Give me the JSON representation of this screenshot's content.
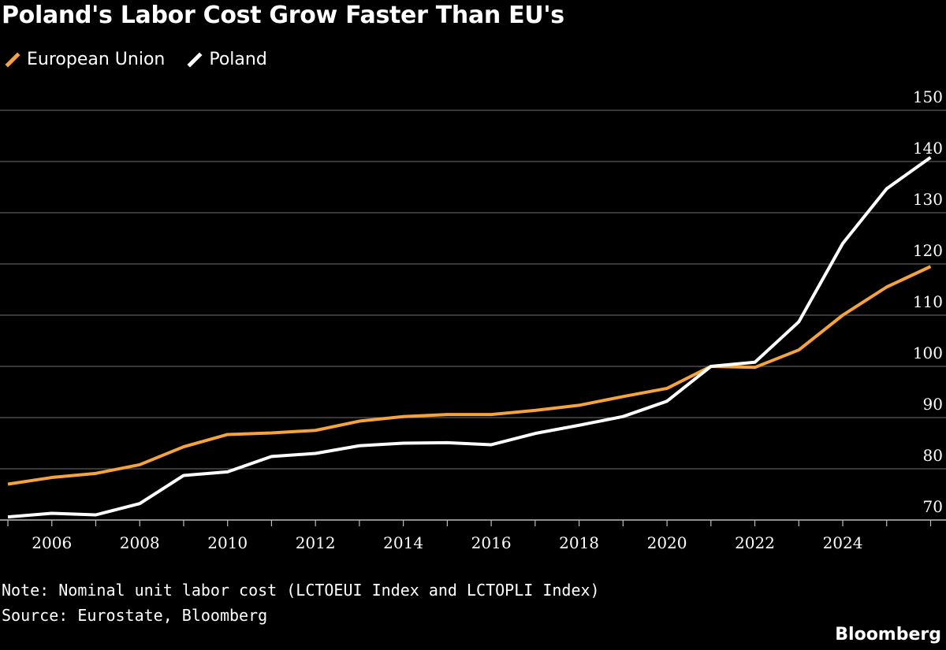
{
  "chart_data": {
    "type": "line",
    "title": "Poland's Labor Cost Grow Faster Than EU's",
    "x": [
      2005,
      2006,
      2007,
      2008,
      2009,
      2010,
      2011,
      2012,
      2013,
      2014,
      2015,
      2016,
      2017,
      2018,
      2019,
      2020,
      2021,
      2022,
      2023,
      2024,
      2025,
      2026
    ],
    "series": [
      {
        "name": "European Union",
        "color": "#f5a240",
        "values": [
          77.0,
          78.3,
          79.1,
          80.8,
          84.3,
          86.7,
          87.0,
          87.5,
          89.3,
          90.2,
          90.6,
          90.6,
          91.4,
          92.4,
          94.1,
          95.7,
          100.0,
          99.8,
          103.2,
          110.0,
          115.5,
          119.5
        ]
      },
      {
        "name": "Poland",
        "color": "#ffffff",
        "values": [
          70.6,
          71.3,
          71.0,
          73.2,
          78.7,
          79.4,
          82.4,
          83.0,
          84.5,
          85.0,
          85.1,
          84.7,
          86.9,
          88.5,
          90.2,
          93.2,
          100.0,
          100.8,
          108.7,
          124.0,
          134.7,
          140.8
        ]
      }
    ],
    "xticks": [
      "2006",
      "2008",
      "2010",
      "2012",
      "2014",
      "2016",
      "2018",
      "2020",
      "2022",
      "2024"
    ],
    "yticks": [
      "70",
      "80",
      "90",
      "100",
      "110",
      "120",
      "130",
      "140",
      "150"
    ],
    "xlim": [
      2005,
      2026.35
    ],
    "ylim": [
      70,
      150
    ],
    "y_axis_side": "right",
    "grid": true,
    "legend_position": "top-left",
    "xlabel": "",
    "ylabel": ""
  },
  "footnote": {
    "note": "Note: Nominal unit labor cost (LCTOEUI Index and LCTOPLI Index)",
    "source": "Source: Eurostate, Bloomberg"
  },
  "brand": "Bloomberg",
  "colors": {
    "background": "#000000",
    "grid": "#5a5a5a",
    "axis": "#bdbdbd"
  }
}
